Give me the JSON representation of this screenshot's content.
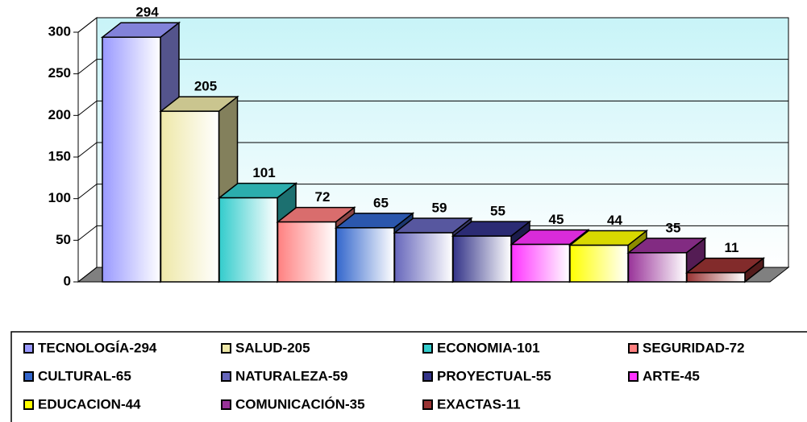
{
  "chart_data": {
    "type": "bar3d",
    "categories": [
      "TECNOLOGÍA-294",
      "SALUD-205",
      "ECONOMIA-101",
      "SEGURIDAD-72",
      "CULTURAL-65",
      "NATURALEZA-59",
      "PROYECTUAL-55",
      "ARTE-45",
      "EDUCACION-44",
      "COMUNICACIÓN-35",
      "EXACTAS-11"
    ],
    "values": [
      294,
      205,
      101,
      72,
      65,
      59,
      55,
      45,
      44,
      35,
      11
    ],
    "colors": [
      "#9999ff",
      "#eee8a8",
      "#33cccc",
      "#ff8080",
      "#3366cc",
      "#6666bb",
      "#333388",
      "#ff33ff",
      "#ffff00",
      "#993399",
      "#993333"
    ],
    "ylim": [
      0,
      300
    ],
    "yticks": [
      0,
      50,
      100,
      150,
      200,
      250,
      300
    ],
    "grid": true,
    "legend": "bottom"
  }
}
